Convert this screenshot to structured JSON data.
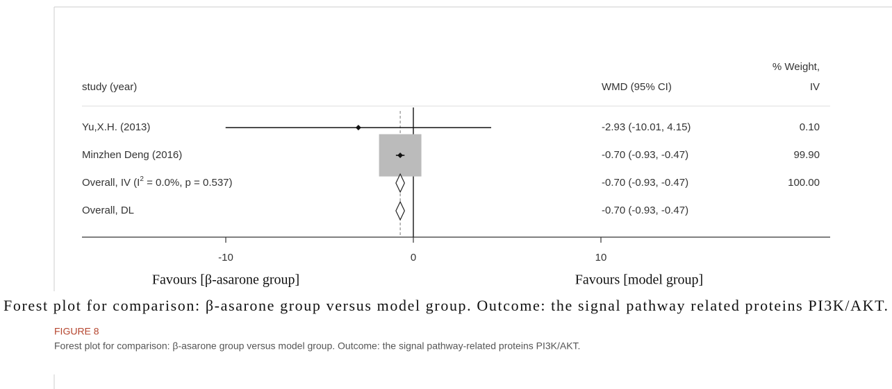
{
  "chart_data": {
    "type": "forest",
    "columns": {
      "study": "study (year)",
      "effect": "WMD (95% CI)",
      "weight": [
        "% Weight,",
        "IV"
      ]
    },
    "studies": [
      {
        "name": "Yu,X.H. (2013)",
        "estimate": -2.93,
        "ci": [
          -10.01,
          4.15
        ],
        "label": "-2.93 (-10.01, 4.15)",
        "weight": 0.1,
        "weight_label": "0.10",
        "kind": "study"
      },
      {
        "name": "Minzhen Deng (2016)",
        "estimate": -0.7,
        "ci": [
          -0.93,
          -0.47
        ],
        "label": "-0.70 (-0.93, -0.47)",
        "weight": 99.9,
        "weight_label": "99.90",
        "kind": "study"
      },
      {
        "name": [
          "Overall, IV (I",
          "2",
          " = 0.0%, p = 0.537)"
        ],
        "estimate": -0.7,
        "ci": [
          -0.93,
          -0.47
        ],
        "label": "-0.70 (-0.93, -0.47)",
        "weight": 100,
        "weight_label": "100.00",
        "kind": "overall"
      },
      {
        "name": "Overall, DL",
        "estimate": -0.7,
        "ci": [
          -0.93,
          -0.47
        ],
        "label": "-0.70 (-0.93, -0.47)",
        "kind": "overall"
      }
    ],
    "xlim": [
      -10,
      10
    ],
    "xticks": [
      -10,
      0,
      10
    ],
    "reference_line": 0,
    "favours": [
      "Favours [β-asarone group]",
      "Favours [model group]"
    ],
    "image_caption": "Forest plot for comparison: β-asarone group versus model group. Outcome: the signal pathway related proteins PI3K/AKT."
  },
  "figure": {
    "label": "FIGURE 8",
    "caption": "Forest plot for comparison: β-asarone group versus model group. Outcome: the signal pathway-related proteins PI3K/AKT."
  }
}
